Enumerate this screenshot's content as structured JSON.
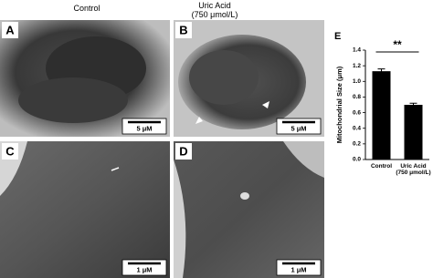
{
  "headers": {
    "control": "Control",
    "uric_acid": "Uric Acid\n(750 μmol/L)"
  },
  "panels": [
    {
      "label": "A",
      "scale": "5 μM"
    },
    {
      "label": "B",
      "scale": "5 μM"
    },
    {
      "label": "C",
      "scale": "1 μM"
    },
    {
      "label": "D",
      "scale": "1 μM"
    }
  ],
  "chart_data": {
    "type": "bar",
    "panel_label": "E",
    "ylabel": "Mitochondrial Size (μm)",
    "categories": [
      "Control",
      "Uric Acid\n(750 μmol/L)"
    ],
    "values": [
      1.13,
      0.7
    ],
    "errors": [
      0.03,
      0.02
    ],
    "color": "#000000",
    "ylim": [
      0,
      1.4
    ],
    "yticks": [
      {
        "value": 0,
        "label": "0.0"
      },
      {
        "value": 0.2,
        "label": "0.2"
      },
      {
        "value": 0.4,
        "label": "0.4"
      },
      {
        "value": 0.6,
        "label": "0.6"
      },
      {
        "value": 0.8,
        "label": "0.8"
      },
      {
        "value": 1,
        "label": "1.0"
      },
      {
        "value": 1.2,
        "label": "1.2"
      },
      {
        "value": 1.4,
        "label": "1.4"
      }
    ],
    "annotation": "**"
  }
}
